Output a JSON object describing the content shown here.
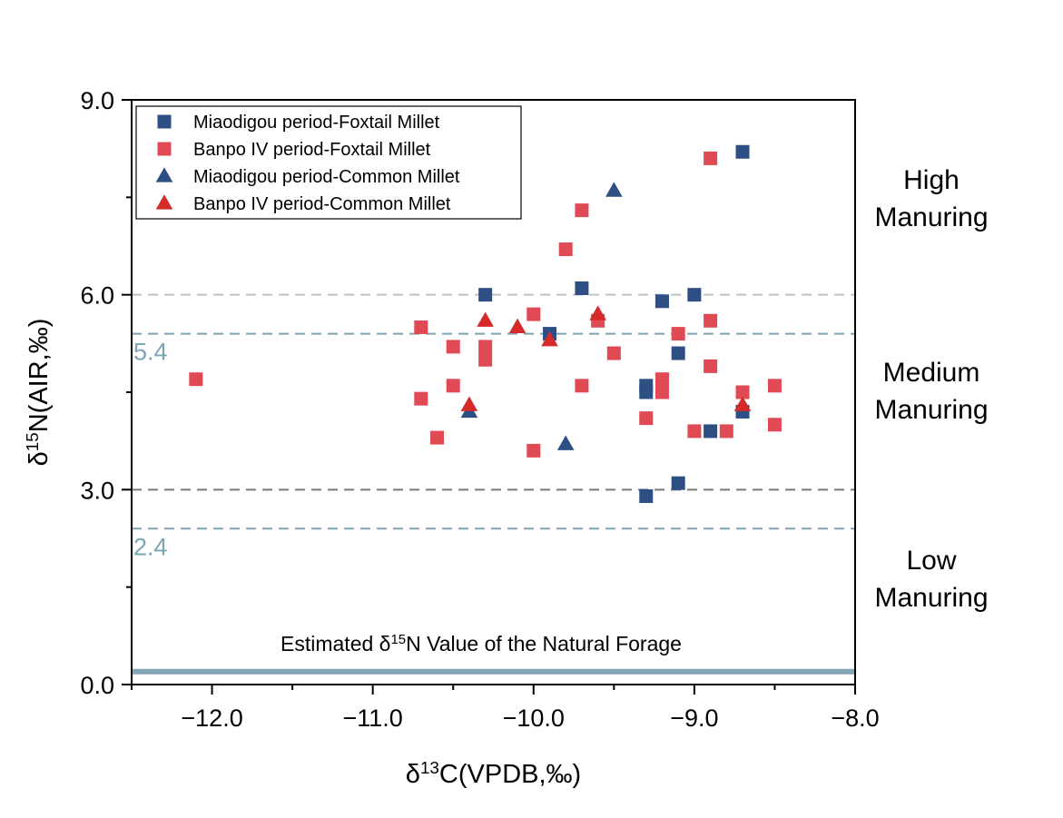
{
  "chart_data": {
    "type": "scatter",
    "xlabel": "δ13C(VPDB,‰)",
    "xlabel_parts": {
      "prefix": "δ",
      "sup": "13",
      "rest": "C(VPDB,‰)"
    },
    "ylabel": "δ15N(AIR,‰)",
    "ylabel_parts": {
      "prefix": "δ",
      "sup": "15",
      "rest": "N(AIR,‰)"
    },
    "xlim": [
      -12.5,
      -8.0
    ],
    "ylim": [
      0.0,
      9.0
    ],
    "x_ticks": [
      -12.0,
      -11.0,
      -10.0,
      -9.0,
      -8.0
    ],
    "x_tick_labels": [
      "−12.0",
      "−11.0",
      "−10.0",
      "−9.0",
      "−8.0"
    ],
    "y_ticks": [
      0.0,
      3.0,
      6.0,
      9.0
    ],
    "y_tick_labels": [
      "0.0",
      "3.0",
      "6.0",
      "9.0"
    ],
    "grid": false,
    "legend_position": "top-left",
    "series": [
      {
        "name": "Miaodigou period-Foxtail Millet",
        "marker": "square",
        "color": "#2e4f84",
        "points": [
          [
            -10.3,
            6.0
          ],
          [
            -9.9,
            5.4
          ],
          [
            -9.7,
            6.1
          ],
          [
            -9.3,
            4.6
          ],
          [
            -9.3,
            4.5
          ],
          [
            -9.2,
            5.9
          ],
          [
            -9.1,
            5.1
          ],
          [
            -9.0,
            6.0
          ],
          [
            -8.9,
            3.9
          ],
          [
            -8.7,
            8.2
          ],
          [
            -8.7,
            4.2
          ],
          [
            -9.3,
            2.9
          ],
          [
            -9.1,
            3.1
          ]
        ]
      },
      {
        "name": "Banpo IV period-Foxtail Millet",
        "marker": "square",
        "color": "#e04a55",
        "points": [
          [
            -12.1,
            4.7
          ],
          [
            -10.7,
            5.5
          ],
          [
            -10.7,
            4.4
          ],
          [
            -10.6,
            3.8
          ],
          [
            -10.5,
            5.2
          ],
          [
            -10.5,
            4.6
          ],
          [
            -10.3,
            5.2
          ],
          [
            -10.3,
            5.0
          ],
          [
            -10.0,
            5.7
          ],
          [
            -10.0,
            3.6
          ],
          [
            -9.8,
            6.7
          ],
          [
            -9.7,
            7.3
          ],
          [
            -9.7,
            4.6
          ],
          [
            -9.6,
            5.6
          ],
          [
            -9.5,
            5.1
          ],
          [
            -9.3,
            4.1
          ],
          [
            -9.2,
            4.7
          ],
          [
            -9.2,
            4.5
          ],
          [
            -9.1,
            5.4
          ],
          [
            -9.0,
            3.9
          ],
          [
            -8.9,
            8.1
          ],
          [
            -8.9,
            5.6
          ],
          [
            -8.9,
            4.9
          ],
          [
            -8.8,
            3.9
          ],
          [
            -8.7,
            4.5
          ],
          [
            -8.5,
            4.6
          ],
          [
            -8.5,
            4.0
          ]
        ]
      },
      {
        "name": "Miaodigou period-Common Millet",
        "marker": "triangle",
        "color": "#2e4f84",
        "points": [
          [
            -9.5,
            7.6
          ],
          [
            -10.4,
            4.2
          ],
          [
            -9.8,
            3.7
          ]
        ]
      },
      {
        "name": "Banpo IV period-Common Millet",
        "marker": "triangle",
        "color": "#d42a2a",
        "points": [
          [
            -10.3,
            5.6
          ],
          [
            -10.1,
            5.5
          ],
          [
            -9.9,
            5.3
          ],
          [
            -9.6,
            5.7
          ],
          [
            -10.4,
            4.3
          ],
          [
            -8.7,
            4.3
          ]
        ]
      }
    ],
    "reference_lines": [
      {
        "y": 6.0,
        "style": "dashed",
        "color": "#c2c2c2"
      },
      {
        "y": 5.4,
        "style": "dashed",
        "color": "#7ba4b5",
        "label": "5.4"
      },
      {
        "y": 3.0,
        "style": "dashed",
        "color": "#7a7a7a"
      },
      {
        "y": 2.4,
        "style": "dashed",
        "color": "#7ba4b5",
        "label": "2.4"
      },
      {
        "y": 0.2,
        "style": "solid",
        "color": "#85a6b6"
      }
    ],
    "annotations": {
      "forage": {
        "prefix": "Estimated  δ",
        "sup": "15",
        "rest": "N Value of the Natural Forage"
      },
      "zones": [
        {
          "line1": "High",
          "line2": "Manuring"
        },
        {
          "line1": "Medium",
          "line2": "Manuring"
        },
        {
          "line1": "Low",
          "line2": "Manuring"
        }
      ]
    }
  }
}
